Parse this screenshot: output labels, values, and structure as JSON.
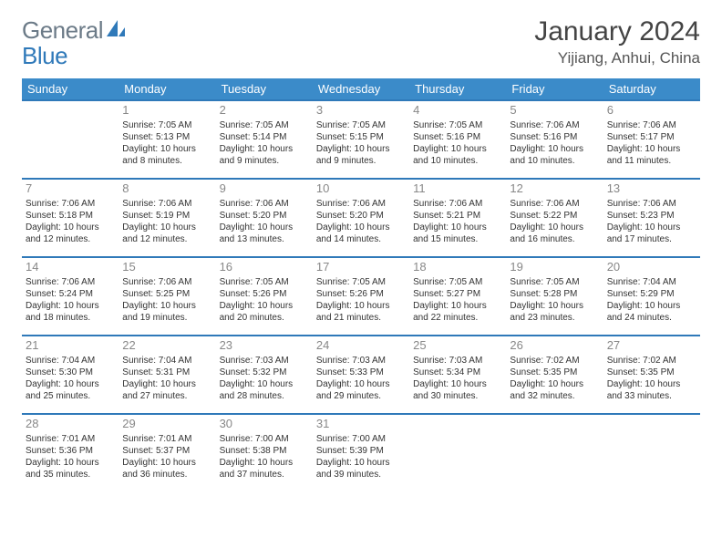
{
  "logo": {
    "text1": "General",
    "text2": "Blue"
  },
  "title": "January 2024",
  "location": "Yijiang, Anhui, China",
  "colors": {
    "header_bg": "#3b8bc9",
    "row_border": "#2f79b9",
    "daynum": "#888888",
    "text": "#333333",
    "logo_gray": "#6b7a87",
    "logo_blue": "#2f79b9"
  },
  "weekdays": [
    "Sunday",
    "Monday",
    "Tuesday",
    "Wednesday",
    "Thursday",
    "Friday",
    "Saturday"
  ],
  "weeks": [
    [
      {
        "day": "",
        "lines": []
      },
      {
        "day": "1",
        "lines": [
          "Sunrise: 7:05 AM",
          "Sunset: 5:13 PM",
          "Daylight: 10 hours and 8 minutes."
        ]
      },
      {
        "day": "2",
        "lines": [
          "Sunrise: 7:05 AM",
          "Sunset: 5:14 PM",
          "Daylight: 10 hours and 9 minutes."
        ]
      },
      {
        "day": "3",
        "lines": [
          "Sunrise: 7:05 AM",
          "Sunset: 5:15 PM",
          "Daylight: 10 hours and 9 minutes."
        ]
      },
      {
        "day": "4",
        "lines": [
          "Sunrise: 7:05 AM",
          "Sunset: 5:16 PM",
          "Daylight: 10 hours and 10 minutes."
        ]
      },
      {
        "day": "5",
        "lines": [
          "Sunrise: 7:06 AM",
          "Sunset: 5:16 PM",
          "Daylight: 10 hours and 10 minutes."
        ]
      },
      {
        "day": "6",
        "lines": [
          "Sunrise: 7:06 AM",
          "Sunset: 5:17 PM",
          "Daylight: 10 hours and 11 minutes."
        ]
      }
    ],
    [
      {
        "day": "7",
        "lines": [
          "Sunrise: 7:06 AM",
          "Sunset: 5:18 PM",
          "Daylight: 10 hours and 12 minutes."
        ]
      },
      {
        "day": "8",
        "lines": [
          "Sunrise: 7:06 AM",
          "Sunset: 5:19 PM",
          "Daylight: 10 hours and 12 minutes."
        ]
      },
      {
        "day": "9",
        "lines": [
          "Sunrise: 7:06 AM",
          "Sunset: 5:20 PM",
          "Daylight: 10 hours and 13 minutes."
        ]
      },
      {
        "day": "10",
        "lines": [
          "Sunrise: 7:06 AM",
          "Sunset: 5:20 PM",
          "Daylight: 10 hours and 14 minutes."
        ]
      },
      {
        "day": "11",
        "lines": [
          "Sunrise: 7:06 AM",
          "Sunset: 5:21 PM",
          "Daylight: 10 hours and 15 minutes."
        ]
      },
      {
        "day": "12",
        "lines": [
          "Sunrise: 7:06 AM",
          "Sunset: 5:22 PM",
          "Daylight: 10 hours and 16 minutes."
        ]
      },
      {
        "day": "13",
        "lines": [
          "Sunrise: 7:06 AM",
          "Sunset: 5:23 PM",
          "Daylight: 10 hours and 17 minutes."
        ]
      }
    ],
    [
      {
        "day": "14",
        "lines": [
          "Sunrise: 7:06 AM",
          "Sunset: 5:24 PM",
          "Daylight: 10 hours and 18 minutes."
        ]
      },
      {
        "day": "15",
        "lines": [
          "Sunrise: 7:06 AM",
          "Sunset: 5:25 PM",
          "Daylight: 10 hours and 19 minutes."
        ]
      },
      {
        "day": "16",
        "lines": [
          "Sunrise: 7:05 AM",
          "Sunset: 5:26 PM",
          "Daylight: 10 hours and 20 minutes."
        ]
      },
      {
        "day": "17",
        "lines": [
          "Sunrise: 7:05 AM",
          "Sunset: 5:26 PM",
          "Daylight: 10 hours and 21 minutes."
        ]
      },
      {
        "day": "18",
        "lines": [
          "Sunrise: 7:05 AM",
          "Sunset: 5:27 PM",
          "Daylight: 10 hours and 22 minutes."
        ]
      },
      {
        "day": "19",
        "lines": [
          "Sunrise: 7:05 AM",
          "Sunset: 5:28 PM",
          "Daylight: 10 hours and 23 minutes."
        ]
      },
      {
        "day": "20",
        "lines": [
          "Sunrise: 7:04 AM",
          "Sunset: 5:29 PM",
          "Daylight: 10 hours and 24 minutes."
        ]
      }
    ],
    [
      {
        "day": "21",
        "lines": [
          "Sunrise: 7:04 AM",
          "Sunset: 5:30 PM",
          "Daylight: 10 hours and 25 minutes."
        ]
      },
      {
        "day": "22",
        "lines": [
          "Sunrise: 7:04 AM",
          "Sunset: 5:31 PM",
          "Daylight: 10 hours and 27 minutes."
        ]
      },
      {
        "day": "23",
        "lines": [
          "Sunrise: 7:03 AM",
          "Sunset: 5:32 PM",
          "Daylight: 10 hours and 28 minutes."
        ]
      },
      {
        "day": "24",
        "lines": [
          "Sunrise: 7:03 AM",
          "Sunset: 5:33 PM",
          "Daylight: 10 hours and 29 minutes."
        ]
      },
      {
        "day": "25",
        "lines": [
          "Sunrise: 7:03 AM",
          "Sunset: 5:34 PM",
          "Daylight: 10 hours and 30 minutes."
        ]
      },
      {
        "day": "26",
        "lines": [
          "Sunrise: 7:02 AM",
          "Sunset: 5:35 PM",
          "Daylight: 10 hours and 32 minutes."
        ]
      },
      {
        "day": "27",
        "lines": [
          "Sunrise: 7:02 AM",
          "Sunset: 5:35 PM",
          "Daylight: 10 hours and 33 minutes."
        ]
      }
    ],
    [
      {
        "day": "28",
        "lines": [
          "Sunrise: 7:01 AM",
          "Sunset: 5:36 PM",
          "Daylight: 10 hours and 35 minutes."
        ]
      },
      {
        "day": "29",
        "lines": [
          "Sunrise: 7:01 AM",
          "Sunset: 5:37 PM",
          "Daylight: 10 hours and 36 minutes."
        ]
      },
      {
        "day": "30",
        "lines": [
          "Sunrise: 7:00 AM",
          "Sunset: 5:38 PM",
          "Daylight: 10 hours and 37 minutes."
        ]
      },
      {
        "day": "31",
        "lines": [
          "Sunrise: 7:00 AM",
          "Sunset: 5:39 PM",
          "Daylight: 10 hours and 39 minutes."
        ]
      },
      {
        "day": "",
        "lines": []
      },
      {
        "day": "",
        "lines": []
      },
      {
        "day": "",
        "lines": []
      }
    ]
  ]
}
